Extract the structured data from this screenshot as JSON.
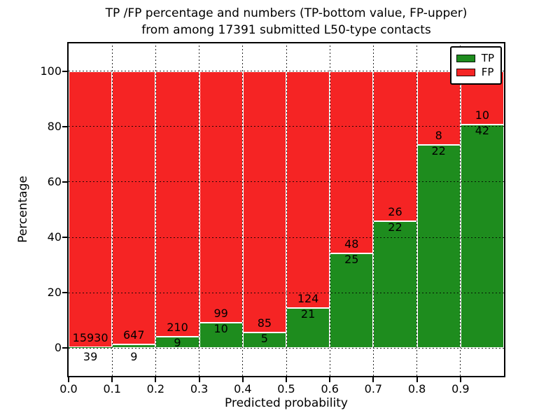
{
  "chart_data": {
    "type": "bar",
    "stacked": true,
    "title_line1": "TP /FP percentage and numbers (TP-bottom value, FP-upper)",
    "title_line2": "from among 17391 submitted L50-type contacts",
    "xlabel": "Predicted probability",
    "ylabel": "Percentage",
    "xlim": [
      0.0,
      1.0
    ],
    "ylim": [
      -10,
      110
    ],
    "yticks": [
      0,
      20,
      40,
      60,
      80,
      100
    ],
    "xticks": [
      0.0,
      0.1,
      0.2,
      0.3,
      0.4,
      0.5,
      0.6,
      0.7,
      0.8,
      0.9
    ],
    "xtick_labels": [
      "0.0",
      "0.1",
      "0.2",
      "0.3",
      "0.4",
      "0.5",
      "0.6",
      "0.7",
      "0.8",
      "0.9"
    ],
    "grid": "dotted",
    "legend_position": "upper right",
    "total_submitted": 17391,
    "series": [
      {
        "name": "TP",
        "color": "#1e8c1e",
        "stack_position": "bottom"
      },
      {
        "name": "FP",
        "color": "#f52424",
        "stack_position": "top"
      }
    ],
    "bins": [
      {
        "x0": 0.0,
        "x1": 0.1,
        "tp_count": 39,
        "fp_count": 15930,
        "tp_pct": 0.24,
        "fp_pct": 99.76
      },
      {
        "x0": 0.1,
        "x1": 0.2,
        "tp_count": 9,
        "fp_count": 647,
        "tp_pct": 1.37,
        "fp_pct": 98.63
      },
      {
        "x0": 0.2,
        "x1": 0.3,
        "tp_count": 9,
        "fp_count": 210,
        "tp_pct": 4.11,
        "fp_pct": 95.89
      },
      {
        "x0": 0.3,
        "x1": 0.4,
        "tp_count": 10,
        "fp_count": 99,
        "tp_pct": 9.17,
        "fp_pct": 90.83
      },
      {
        "x0": 0.4,
        "x1": 0.5,
        "tp_count": 5,
        "fp_count": 85,
        "tp_pct": 5.56,
        "fp_pct": 94.44
      },
      {
        "x0": 0.5,
        "x1": 0.6,
        "tp_count": 21,
        "fp_count": 124,
        "tp_pct": 14.48,
        "fp_pct": 85.52
      },
      {
        "x0": 0.6,
        "x1": 0.7,
        "tp_count": 25,
        "fp_count": 48,
        "tp_pct": 34.25,
        "fp_pct": 65.75
      },
      {
        "x0": 0.7,
        "x1": 0.8,
        "tp_count": 22,
        "fp_count": 26,
        "tp_pct": 45.83,
        "fp_pct": 54.17
      },
      {
        "x0": 0.8,
        "x1": 0.9,
        "tp_count": 22,
        "fp_count": 8,
        "tp_pct": 73.33,
        "fp_pct": 26.67
      },
      {
        "x0": 0.9,
        "x1": 1.0,
        "tp_count": 42,
        "fp_count": 10,
        "tp_pct": 80.77,
        "fp_pct": 19.23
      }
    ]
  }
}
